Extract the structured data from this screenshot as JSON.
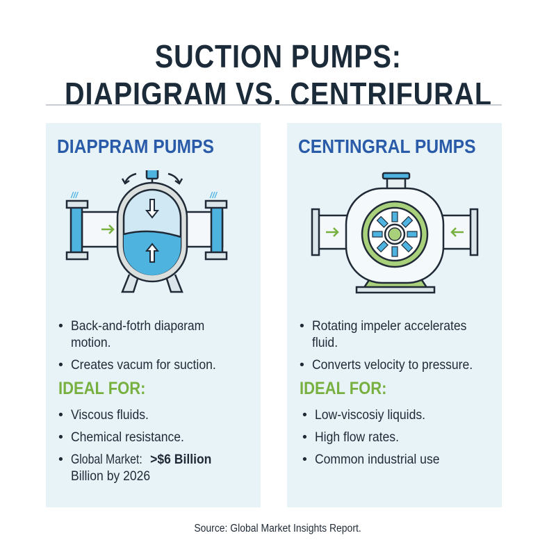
{
  "title": {
    "line1": "SUCTION PUMPS:",
    "line2": "DIAPIGRAM VS. CENTRIFURAL"
  },
  "colors": {
    "title": "#1c2b3a",
    "heading": "#2a5ba8",
    "ideal": "#78b040",
    "panel": "#e8f3f8",
    "fluid": "#4fb3e0"
  },
  "left": {
    "heading": "DIAPPRAM PUMPS",
    "icon": "diaphragm-pump-illustration",
    "bullets": [
      "Back-and-fotrh diapɞram",
      "motion.",
      "Creates vacum for suction."
    ],
    "ideal_label": "IDEAL FOR:",
    "ideal_items": [
      "Viscous fluids.",
      "Chemical resistance.",
      "Global Market: ",
      ">$6 Billion",
      "Billion by 2026"
    ]
  },
  "right": {
    "heading": "CENTINGRAL PUMPS",
    "icon": "centrifugal-pump-illustration",
    "bullets": [
      "Rotating impeler accelerates",
      "fluid.",
      "Converts velocity to pressure."
    ],
    "ideal_label": "IDEAL FOR:",
    "ideal_items": [
      "Low-viscosiy liquids.",
      "High flow rates.",
      "Common industrial use"
    ]
  },
  "source": "Source: Global Market Insights Report."
}
